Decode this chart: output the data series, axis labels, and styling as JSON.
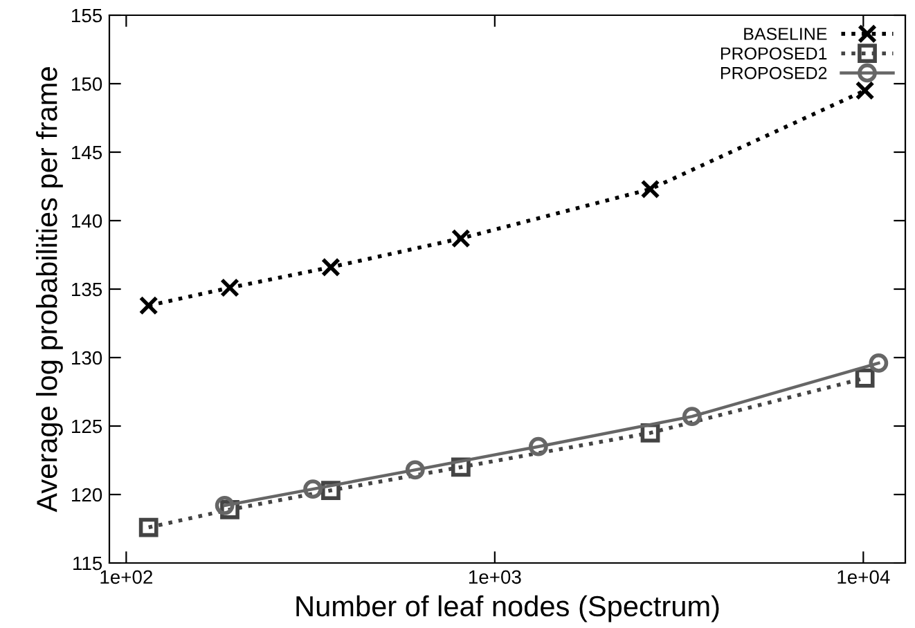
{
  "chart_data": {
    "type": "line",
    "xlabel": "Number of leaf nodes (Spectrum)",
    "ylabel": "Average log probabilities per frame",
    "log": "x",
    "xlim": [
      90,
      13000
    ],
    "xticks": [
      {
        "value": 100,
        "label": "1e+02"
      },
      {
        "value": 1000,
        "label": "1e+03"
      },
      {
        "value": 10000,
        "label": "1e+04"
      }
    ],
    "ylim": [
      115,
      155
    ],
    "yticks": [
      115,
      120,
      125,
      130,
      135,
      140,
      145,
      150,
      155
    ],
    "grid": false,
    "legend": "top right",
    "series": [
      {
        "name": "BASELINE",
        "color": "#000000",
        "marker": "cross",
        "line_style": "dotted",
        "x": [
          115,
          191,
          359,
          809,
          2642,
          10100
        ],
        "values": [
          133.8,
          135.1,
          136.6,
          138.7,
          142.3,
          149.5
        ]
      },
      {
        "name": "PROPOSED1",
        "color": "#444444",
        "marker": "square",
        "line_style": "dotted",
        "x": [
          115,
          191,
          359,
          809,
          2642,
          10100
        ],
        "values": [
          117.6,
          118.9,
          120.3,
          122.0,
          124.5,
          128.5
        ]
      },
      {
        "name": "PROPOSED2",
        "color": "#666666",
        "marker": "circle",
        "line_style": "solid",
        "x": [
          185,
          321,
          608,
          1313,
          3429,
          11000
        ],
        "values": [
          119.2,
          120.4,
          121.8,
          123.5,
          125.7,
          129.6
        ]
      }
    ]
  }
}
